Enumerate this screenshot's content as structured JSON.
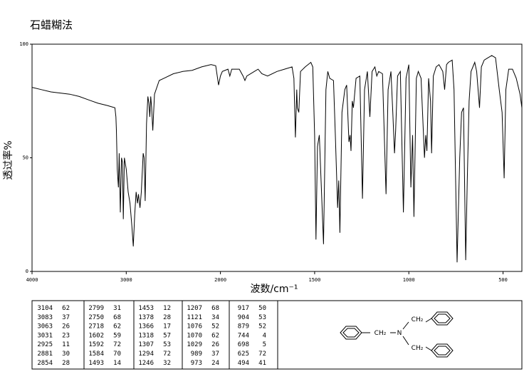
{
  "chart_data": {
    "type": "line",
    "title": "石蜡糊法",
    "xlabel": "波数/cm⁻¹",
    "ylabel": "透过率%",
    "x": [
      4000,
      3900,
      3800,
      3700,
      3600,
      3500,
      3400,
      3300,
      3200,
      3120,
      3110,
      3104,
      3095,
      3083,
      3075,
      3063,
      3050,
      3040,
      3031,
      3020,
      3000,
      2980,
      2960,
      2940,
      2925,
      2910,
      2895,
      2881,
      2870,
      2854,
      2840,
      2820,
      2810,
      2799,
      2785,
      2770,
      2760,
      2750,
      2740,
      2730,
      2718,
      2700,
      2650,
      2600,
      2500,
      2400,
      2300,
      2200,
      2100,
      2050,
      2030,
      2020,
      2000,
      1990,
      1960,
      1950,
      1940,
      1900,
      1880,
      1870,
      1860,
      1820,
      1800,
      1780,
      1750,
      1700,
      1660,
      1620,
      1610,
      1602,
      1595,
      1592,
      1584,
      1575,
      1550,
      1520,
      1510,
      1500,
      1493,
      1485,
      1475,
      1453,
      1440,
      1430,
      1420,
      1400,
      1390,
      1378,
      1372,
      1366,
      1355,
      1340,
      1330,
      1318,
      1312,
      1307,
      1300,
      1294,
      1280,
      1260,
      1246,
      1235,
      1220,
      1207,
      1195,
      1180,
      1170,
      1160,
      1140,
      1121,
      1110,
      1095,
      1085,
      1076,
      1070,
      1060,
      1045,
      1029,
      1015,
      1000,
      989,
      980,
      973,
      960,
      950,
      935,
      917,
      910,
      904,
      895,
      885,
      879,
      870,
      855,
      840,
      820,
      810,
      800,
      790,
      770,
      760,
      744,
      730,
      720,
      710,
      698,
      690,
      680,
      670,
      650,
      640,
      625,
      615,
      600,
      580,
      560,
      540,
      520,
      505,
      494,
      485,
      470,
      450,
      430,
      410,
      400
    ],
    "values": [
      81,
      80,
      79,
      78.5,
      78,
      77,
      75.5,
      74,
      73,
      72,
      68,
      62,
      45,
      37,
      52,
      26,
      50,
      48,
      23,
      50,
      45,
      35,
      30,
      20,
      11,
      25,
      35,
      30,
      34,
      28,
      35,
      52,
      50,
      31,
      65,
      77,
      74,
      68,
      77,
      72,
      62,
      78,
      84,
      85,
      87,
      88,
      88.5,
      90,
      91,
      90.5,
      85,
      82,
      86,
      88,
      89,
      86,
      89,
      89,
      86,
      84,
      86,
      88,
      89,
      87,
      86,
      88,
      89,
      90,
      85,
      59,
      80,
      72,
      70,
      88,
      90,
      92,
      90,
      60,
      14,
      55,
      60,
      12,
      80,
      88,
      85,
      84,
      60,
      28,
      40,
      17,
      70,
      80,
      82,
      57,
      60,
      53,
      75,
      72,
      85,
      86,
      32,
      80,
      88,
      68,
      88,
      90,
      86,
      88,
      87,
      34,
      80,
      88,
      70,
      52,
      62,
      86,
      88,
      26,
      85,
      91,
      37,
      60,
      24,
      85,
      88,
      85,
      50,
      60,
      53,
      85,
      75,
      52,
      86,
      90,
      91,
      88,
      80,
      91,
      92,
      93,
      80,
      4,
      50,
      70,
      72,
      5,
      40,
      75,
      88,
      92,
      88,
      72,
      90,
      93,
      94,
      95,
      94,
      80,
      70,
      41,
      80,
      89,
      89,
      85,
      78,
      72
    ],
    "color": "#000000",
    "xlim": [
      4000,
      400
    ],
    "xticks": [
      4000,
      3000,
      2000,
      1500,
      1000,
      500
    ],
    "x_scale_break": 2000,
    "ylim": [
      0,
      100
    ],
    "yticks": [
      0,
      50,
      100
    ]
  },
  "peak_table": [
    [
      [
        3104,
        62
      ],
      [
        3083,
        37
      ],
      [
        3063,
        26
      ],
      [
        3031,
        23
      ],
      [
        2925,
        11
      ],
      [
        2881,
        30
      ],
      [
        2854,
        28
      ]
    ],
    [
      [
        2799,
        31
      ],
      [
        2750,
        68
      ],
      [
        2718,
        62
      ],
      [
        1602,
        59
      ],
      [
        1592,
        72
      ],
      [
        1584,
        70
      ],
      [
        1493,
        14
      ]
    ],
    [
      [
        1453,
        12
      ],
      [
        1378,
        28
      ],
      [
        1366,
        17
      ],
      [
        1318,
        57
      ],
      [
        1307,
        53
      ],
      [
        1294,
        72
      ],
      [
        1246,
        32
      ]
    ],
    [
      [
        1207,
        68
      ],
      [
        1121,
        34
      ],
      [
        1076,
        52
      ],
      [
        1070,
        62
      ],
      [
        1029,
        26
      ],
      [
        989,
        37
      ],
      [
        973,
        24
      ]
    ],
    [
      [
        917,
        50
      ],
      [
        904,
        53
      ],
      [
        879,
        52
      ],
      [
        744,
        4
      ],
      [
        698,
        5
      ],
      [
        625,
        72
      ],
      [
        494,
        41
      ]
    ]
  ],
  "structure": {
    "labels": [
      "CH₂",
      "N",
      "CH₂",
      "CH₂"
    ]
  }
}
